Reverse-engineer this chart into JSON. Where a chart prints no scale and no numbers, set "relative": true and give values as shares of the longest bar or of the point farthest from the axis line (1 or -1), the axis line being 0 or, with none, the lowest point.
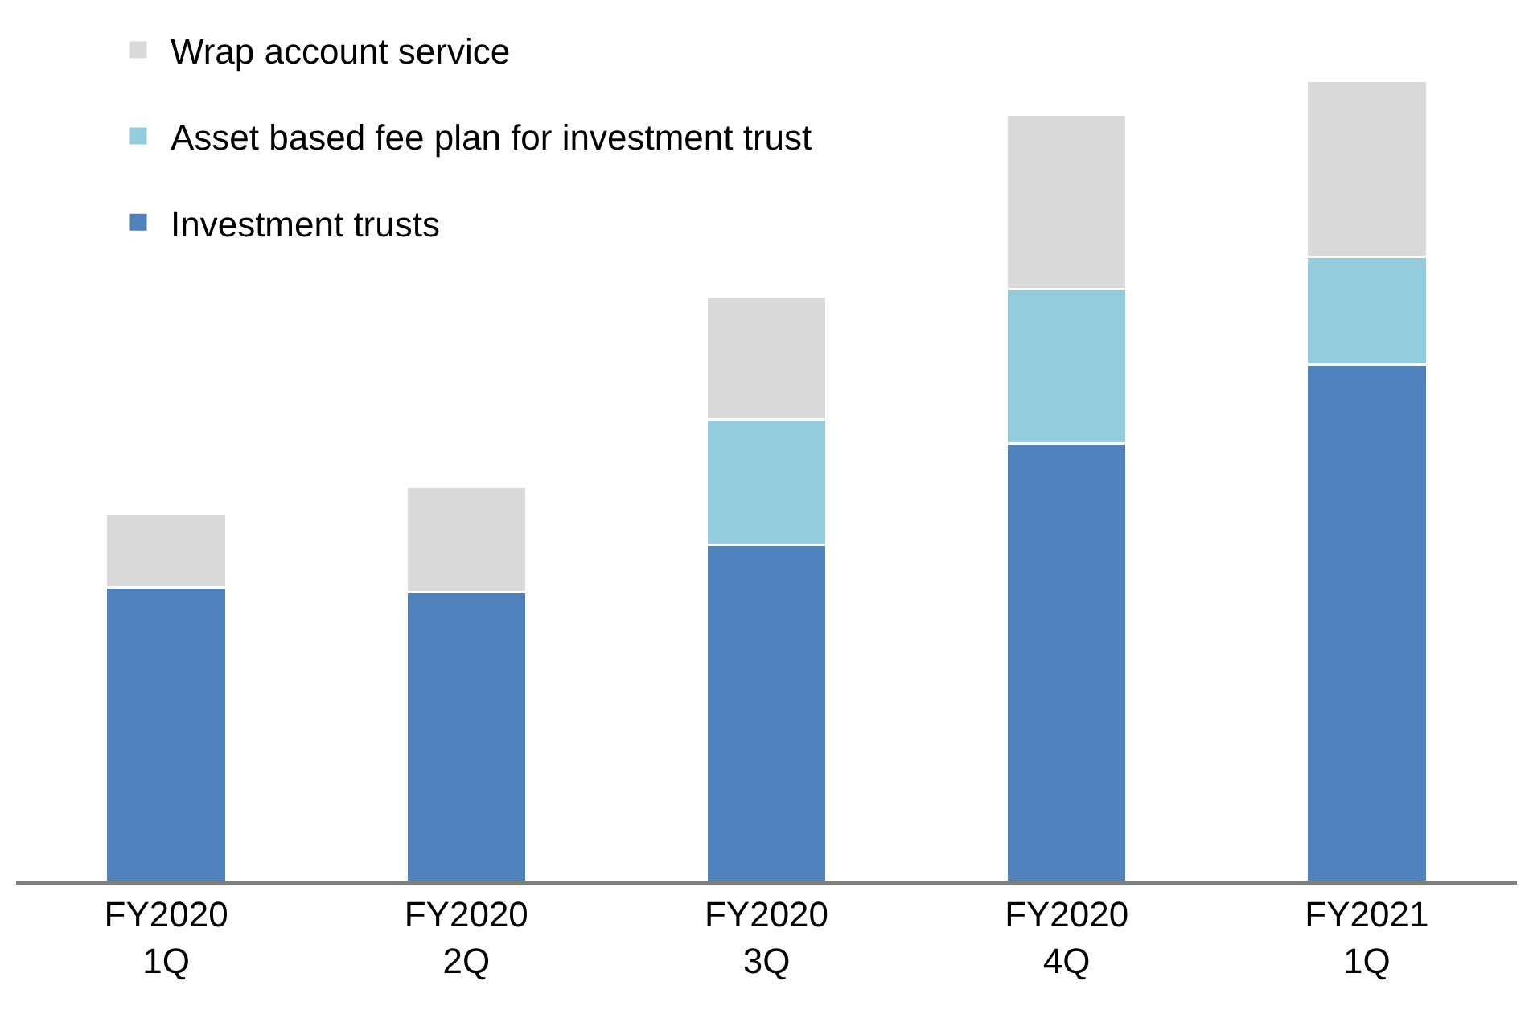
{
  "chart_data": {
    "type": "bar",
    "stacked": true,
    "relative": true,
    "legend": "top left",
    "categories": [
      "FY2020\n1Q",
      "FY2020\n2Q",
      "FY2020\n3Q",
      "FY2020\n4Q",
      "FY2021\n1Q"
    ],
    "series": [
      {
        "name": "Investment trusts",
        "color": "#4f81bd",
        "values": [
          0.367,
          0.361,
          0.42,
          0.547,
          0.645
        ]
      },
      {
        "name": "Asset based fee plan for investment trust",
        "color": "#93cddd",
        "values": [
          null,
          null,
          0.157,
          0.192,
          0.135
        ]
      },
      {
        "name": "Wrap account service",
        "color": "#d9d9d9",
        "values": [
          0.092,
          0.131,
          0.153,
          0.218,
          0.22
        ]
      }
    ]
  }
}
